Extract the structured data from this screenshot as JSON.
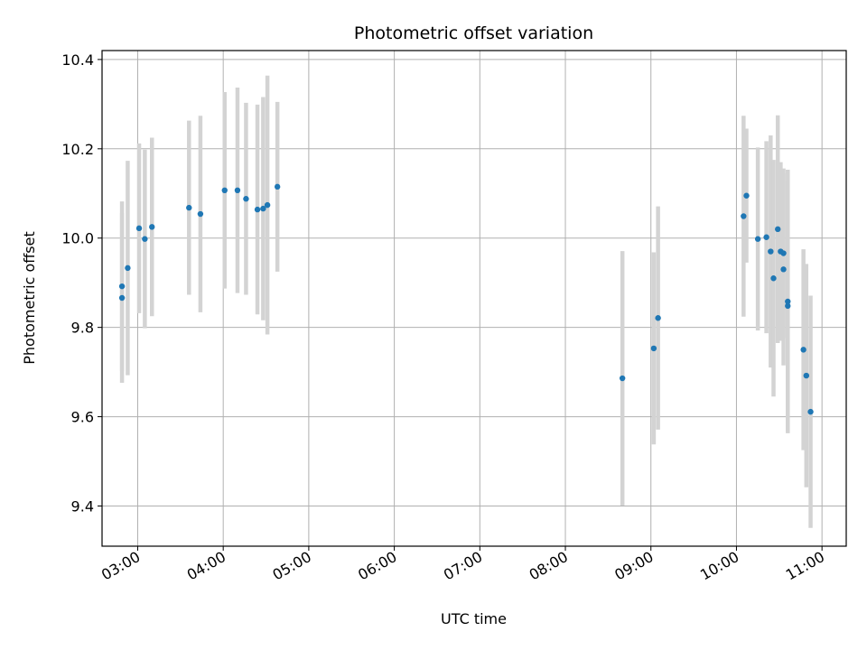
{
  "chart_data": {
    "type": "scatter",
    "title": "Photometric offset variation",
    "xlabel": "UTC time",
    "ylabel": "Photometric offset",
    "x_unit": "hours UTC",
    "xlim": [
      "02:35",
      "11:17"
    ],
    "ylim": [
      9.31,
      10.42
    ],
    "grid": true,
    "x_ticks": [
      "03:00",
      "04:00",
      "05:00",
      "06:00",
      "07:00",
      "08:00",
      "09:00",
      "10:00",
      "11:00"
    ],
    "y_ticks": [
      9.4,
      9.6,
      9.8,
      10.0,
      10.2,
      10.4
    ],
    "y_tick_labels": [
      "9.4",
      "9.6",
      "9.8",
      "10.0",
      "10.2",
      "10.4"
    ],
    "point_color": "#1f77b4",
    "errorbar_color": "#d3d3d3",
    "points": [
      {
        "x": "02:49",
        "y": 9.866,
        "err": 0.19
      },
      {
        "x": "02:49",
        "y": 9.892,
        "err": 0.19
      },
      {
        "x": "02:53",
        "y": 9.933,
        "err": 0.24
      },
      {
        "x": "03:01",
        "y": 10.022,
        "err": 0.19
      },
      {
        "x": "03:05",
        "y": 9.998,
        "err": 0.2
      },
      {
        "x": "03:10",
        "y": 10.025,
        "err": 0.2
      },
      {
        "x": "03:36",
        "y": 10.068,
        "err": 0.195
      },
      {
        "x": "03:44",
        "y": 10.054,
        "err": 0.22
      },
      {
        "x": "04:01",
        "y": 10.107,
        "err": 0.22
      },
      {
        "x": "04:10",
        "y": 10.107,
        "err": 0.23
      },
      {
        "x": "04:16",
        "y": 10.088,
        "err": 0.215
      },
      {
        "x": "04:24",
        "y": 10.064,
        "err": 0.235
      },
      {
        "x": "04:28",
        "y": 10.066,
        "err": 0.25
      },
      {
        "x": "04:31",
        "y": 10.074,
        "err": 0.29
      },
      {
        "x": "04:38",
        "y": 10.115,
        "err": 0.19
      },
      {
        "x": "08:40",
        "y": 9.686,
        "err": 0.285
      },
      {
        "x": "09:02",
        "y": 9.753,
        "err": 0.215
      },
      {
        "x": "09:05",
        "y": 9.821,
        "err": 0.25
      },
      {
        "x": "10:05",
        "y": 10.049,
        "err": 0.225
      },
      {
        "x": "10:07",
        "y": 10.095,
        "err": 0.15
      },
      {
        "x": "10:15",
        "y": 9.998,
        "err": 0.205
      },
      {
        "x": "10:21",
        "y": 10.002,
        "err": 0.215
      },
      {
        "x": "10:24",
        "y": 9.97,
        "err": 0.26
      },
      {
        "x": "10:26",
        "y": 9.91,
        "err": 0.265
      },
      {
        "x": "10:29",
        "y": 10.02,
        "err": 0.255
      },
      {
        "x": "10:31",
        "y": 9.97,
        "err": 0.2
      },
      {
        "x": "10:33",
        "y": 9.966,
        "err": 0.19
      },
      {
        "x": "10:33",
        "y": 9.93,
        "err": 0.215
      },
      {
        "x": "10:36",
        "y": 9.858,
        "err": 0.295
      },
      {
        "x": "10:36",
        "y": 9.848,
        "err": 0.28
      },
      {
        "x": "10:47",
        "y": 9.75,
        "err": 0.225
      },
      {
        "x": "10:49",
        "y": 9.692,
        "err": 0.25
      },
      {
        "x": "10:52",
        "y": 9.611,
        "err": 0.26
      }
    ]
  }
}
